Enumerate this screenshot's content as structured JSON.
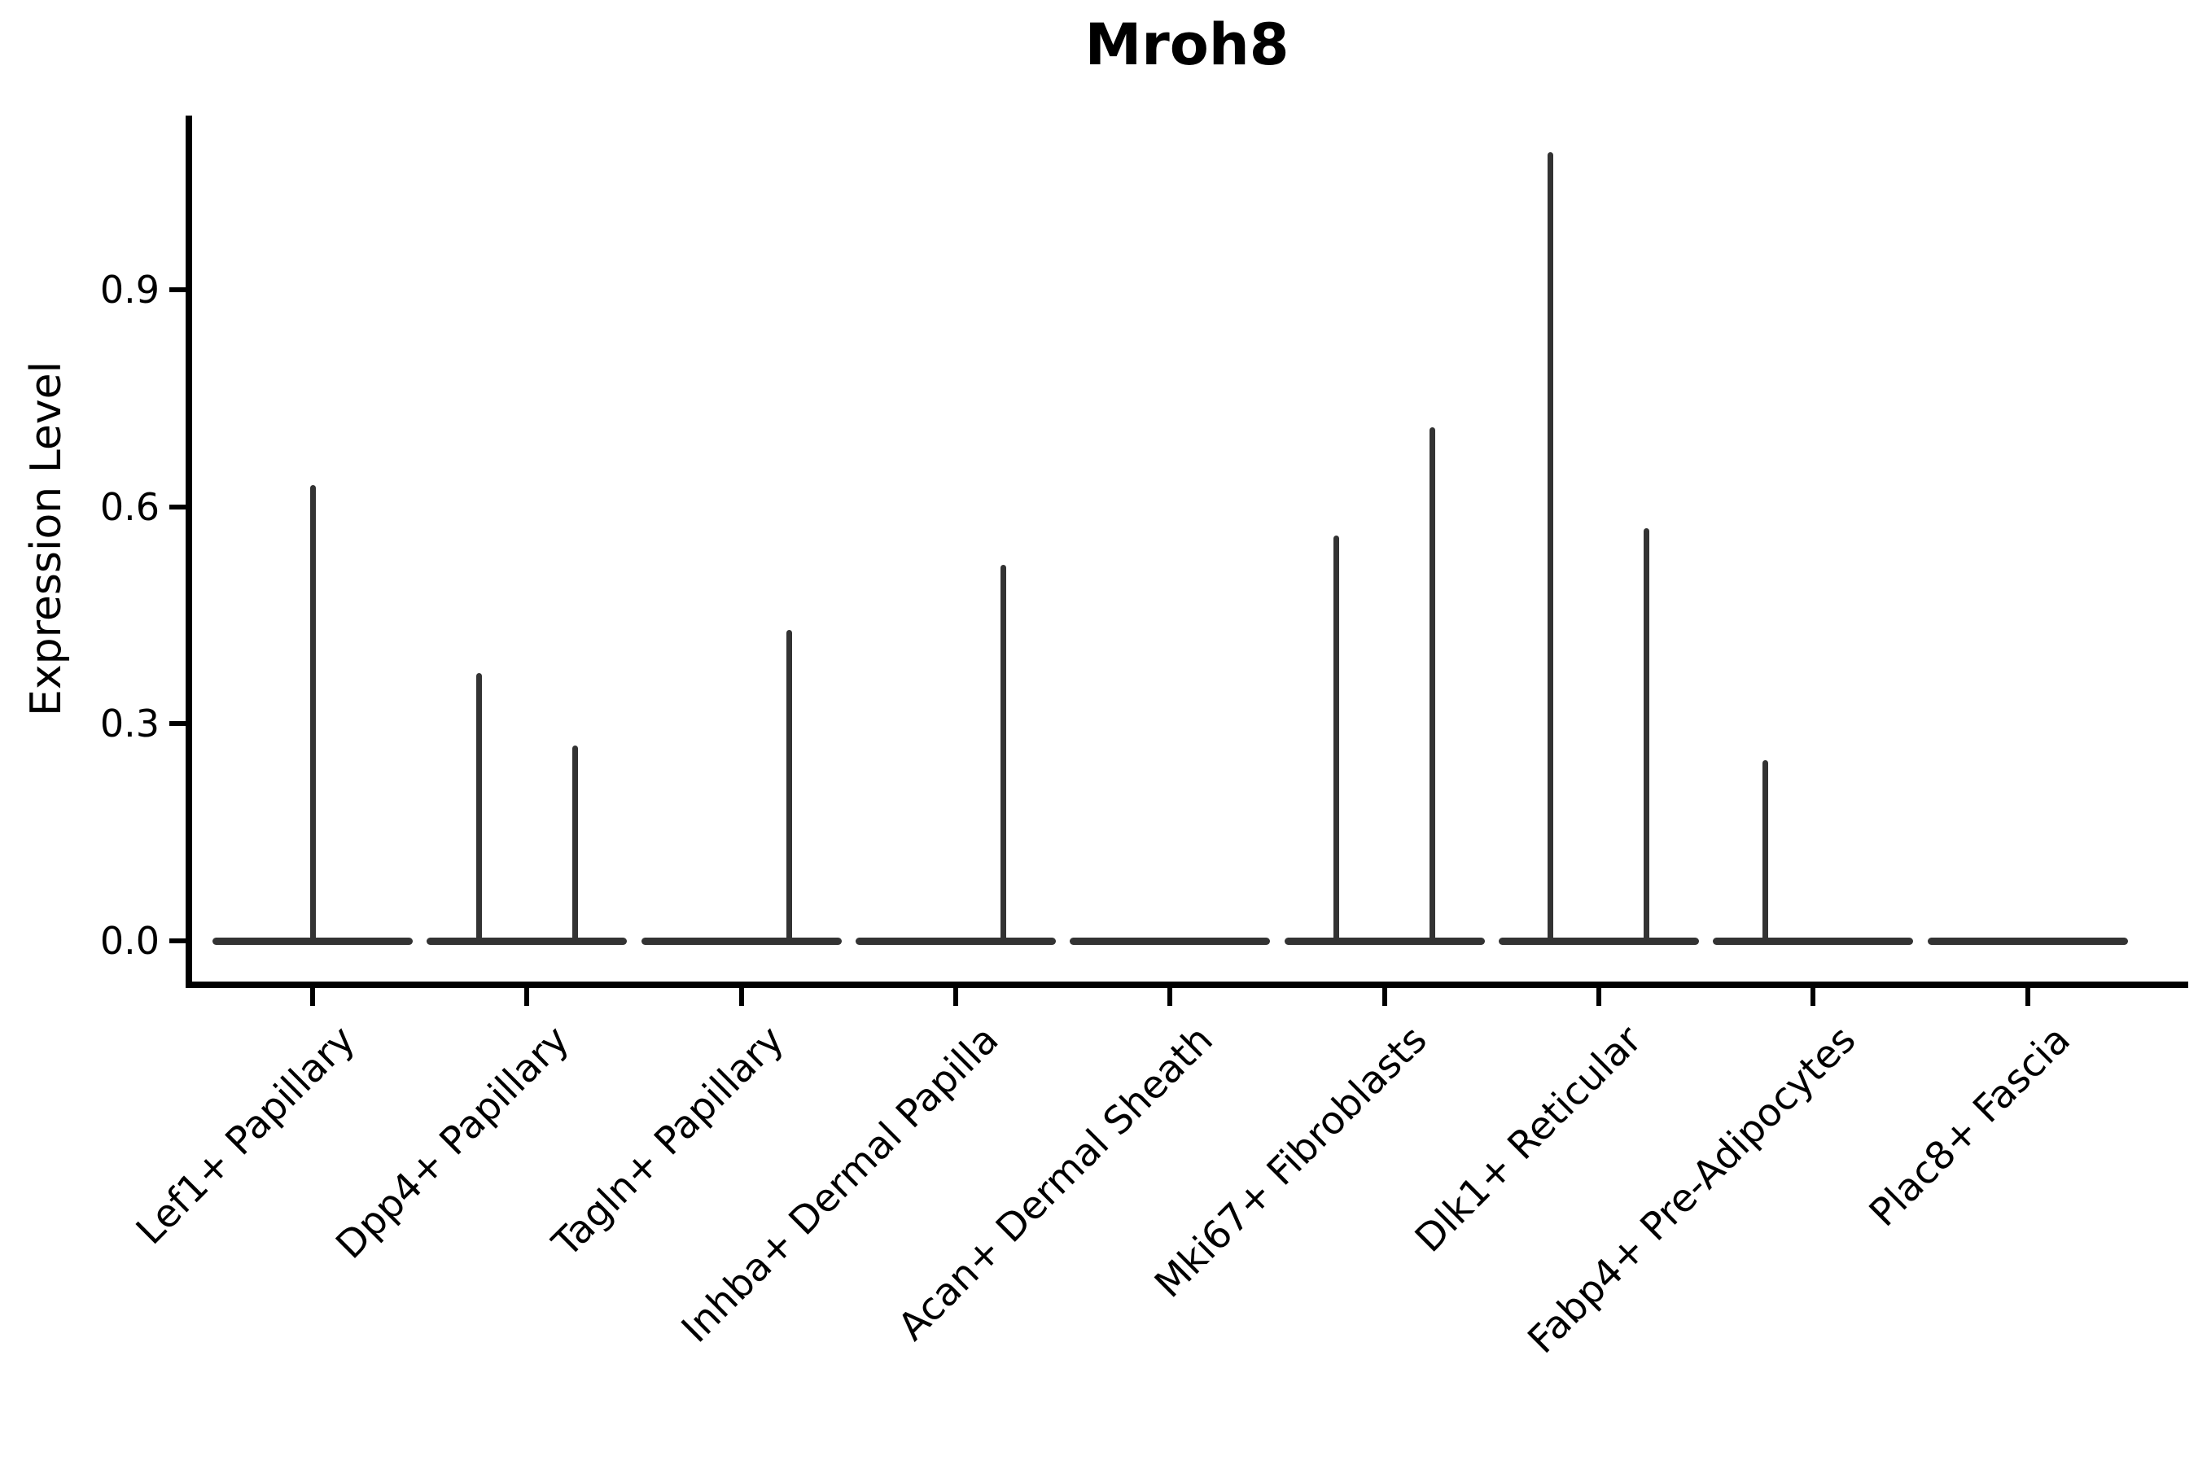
{
  "chart_data": {
    "type": "violin",
    "title": "Mroh8",
    "ylabel": "Expression Level",
    "xlabel": "",
    "ylim": [
      -0.06,
      1.14
    ],
    "yticks": [
      "0.0",
      "0.3",
      "0.6",
      "0.9"
    ],
    "ytick_values": [
      0.0,
      0.3,
      0.6,
      0.9
    ],
    "grid": "off",
    "legend": "none",
    "violin_color": "#333333",
    "axis_color": "#000000",
    "categories": [
      "Lef1+ Papillary",
      "Dpp4+ Papillary",
      "Tagln+ Papillary",
      "Inhba+ Dermal Papilla",
      "Acan+ Dermal Sheath",
      "Mki67+ Fibroblasts",
      "Dlk1+ Reticular",
      "Fabp4+ Pre-Adipocytes",
      "Plac8+ Fascia"
    ],
    "violins": [
      {
        "category": "Lef1+ Papillary",
        "base_value": 0.0,
        "spikes": [
          {
            "position": "center",
            "max": 0.63
          }
        ]
      },
      {
        "category": "Dpp4+ Papillary",
        "base_value": 0.0,
        "spikes": [
          {
            "position": "left",
            "max": 0.37
          },
          {
            "position": "right",
            "max": 0.27
          }
        ]
      },
      {
        "category": "Tagln+ Papillary",
        "base_value": 0.0,
        "spikes": [
          {
            "position": "right",
            "max": 0.43
          }
        ]
      },
      {
        "category": "Inhba+ Dermal Papilla",
        "base_value": 0.0,
        "spikes": [
          {
            "position": "right",
            "max": 0.52
          }
        ]
      },
      {
        "category": "Acan+ Dermal Sheath",
        "base_value": 0.0,
        "spikes": []
      },
      {
        "category": "Mki67+ Fibroblasts",
        "base_value": 0.0,
        "spikes": [
          {
            "position": "left",
            "max": 0.56
          },
          {
            "position": "right",
            "max": 0.71
          }
        ]
      },
      {
        "category": "Dlk1+ Reticular",
        "base_value": 0.0,
        "spikes": [
          {
            "position": "left",
            "max": 1.09
          },
          {
            "position": "right",
            "max": 0.57
          }
        ]
      },
      {
        "category": "Fabp4+ Pre-Adipocytes",
        "base_value": 0.0,
        "spikes": [
          {
            "position": "left",
            "max": 0.25
          }
        ]
      },
      {
        "category": "Plac8+ Fascia",
        "base_value": 0.0,
        "spikes": []
      }
    ]
  }
}
